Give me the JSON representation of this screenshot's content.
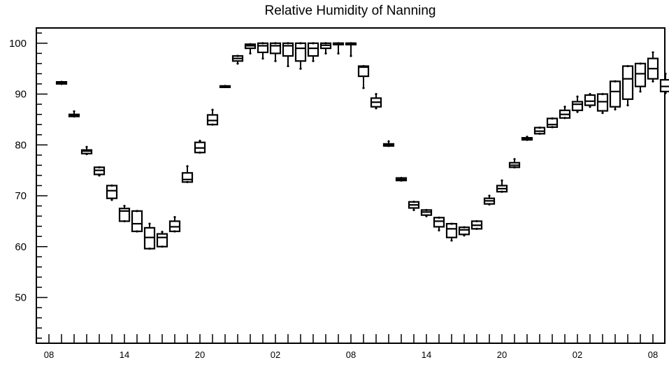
{
  "chart_data": {
    "type": "box",
    "title": "Relative Humidity of Nanning",
    "xlabel": "",
    "ylabel": "",
    "ylim": [
      41,
      103
    ],
    "yticks": [
      50,
      60,
      70,
      80,
      90,
      100
    ],
    "x_tick_labels": [
      "08",
      "14",
      "20",
      "02",
      "08",
      "14",
      "20",
      "02",
      "08"
    ],
    "grid": false,
    "legend": null,
    "series": [
      {
        "hour": 1,
        "min": 92.0,
        "q1": 92.0,
        "median": 92.2,
        "q3": 92.4,
        "max": 92.4
      },
      {
        "hour": 2,
        "min": 85.6,
        "q1": 85.6,
        "median": 85.9,
        "q3": 86.0,
        "max": 86.6
      },
      {
        "hour": 3,
        "min": 78.2,
        "q1": 78.3,
        "median": 78.8,
        "q3": 79.0,
        "max": 79.6
      },
      {
        "hour": 4,
        "min": 74.0,
        "q1": 74.2,
        "median": 75.0,
        "q3": 75.6,
        "max": 75.6
      },
      {
        "hour": 5,
        "min": 69.2,
        "q1": 69.5,
        "median": 71.0,
        "q3": 72.0,
        "max": 72.0
      },
      {
        "hour": 6,
        "min": 65.0,
        "q1": 65.0,
        "median": 67.0,
        "q3": 67.5,
        "max": 68.0
      },
      {
        "hour": 7,
        "min": 63.0,
        "q1": 63.0,
        "median": 64.5,
        "q3": 67.0,
        "max": 67.0
      },
      {
        "hour": 8,
        "min": 59.6,
        "q1": 59.6,
        "median": 61.8,
        "q3": 63.7,
        "max": 64.5
      },
      {
        "hour": 9,
        "min": 60.0,
        "q1": 60.0,
        "median": 61.8,
        "q3": 62.5,
        "max": 62.9
      },
      {
        "hour": 10,
        "min": 63.0,
        "q1": 63.0,
        "median": 63.9,
        "q3": 65.0,
        "max": 65.8
      },
      {
        "hour": 11,
        "min": 72.7,
        "q1": 72.7,
        "median": 73.2,
        "q3": 74.5,
        "max": 75.8
      },
      {
        "hour": 12,
        "min": 78.5,
        "q1": 78.5,
        "median": 79.4,
        "q3": 80.5,
        "max": 80.8
      },
      {
        "hour": 13,
        "min": 84.0,
        "q1": 84.0,
        "median": 84.8,
        "q3": 85.9,
        "max": 86.9
      },
      {
        "hour": 14,
        "min": 91.4,
        "q1": 91.4,
        "median": 91.5,
        "q3": 91.6,
        "max": 91.6
      },
      {
        "hour": 15,
        "min": 96.0,
        "q1": 96.5,
        "median": 97.0,
        "q3": 97.5,
        "max": 97.5
      },
      {
        "hour": 16,
        "min": 98.0,
        "q1": 99.0,
        "median": 99.5,
        "q3": 99.8,
        "max": 99.8
      },
      {
        "hour": 17,
        "min": 97.0,
        "q1": 98.2,
        "median": 99.5,
        "q3": 100.0,
        "max": 100.0
      },
      {
        "hour": 18,
        "min": 96.5,
        "q1": 98.0,
        "median": 99.5,
        "q3": 100.0,
        "max": 100.0
      },
      {
        "hour": 19,
        "min": 95.5,
        "q1": 97.5,
        "median": 99.5,
        "q3": 100.0,
        "max": 100.0
      },
      {
        "hour": 20,
        "min": 95.0,
        "q1": 96.5,
        "median": 99.0,
        "q3": 100.0,
        "max": 100.0
      },
      {
        "hour": 21,
        "min": 96.5,
        "q1": 97.5,
        "median": 99.0,
        "q3": 100.0,
        "max": 100.0
      },
      {
        "hour": 22,
        "min": 98.0,
        "q1": 99.0,
        "median": 99.6,
        "q3": 100.0,
        "max": 100.0
      },
      {
        "hour": 23,
        "min": 98.0,
        "q1": 100.0,
        "median": 100.0,
        "q3": 100.0,
        "max": 100.0
      },
      {
        "hour": 24,
        "min": 97.5,
        "q1": 100.0,
        "median": 100.0,
        "q3": 100.0,
        "max": 100.0
      },
      {
        "hour": 25,
        "min": 91.2,
        "q1": 93.5,
        "median": 95.3,
        "q3": 95.5,
        "max": 95.5
      },
      {
        "hour": 26,
        "min": 87.2,
        "q1": 87.5,
        "median": 88.4,
        "q3": 89.2,
        "max": 90.0
      },
      {
        "hour": 27,
        "min": 79.8,
        "q1": 79.8,
        "median": 80.0,
        "q3": 80.2,
        "max": 80.7
      },
      {
        "hour": 28,
        "min": 73.0,
        "q1": 73.0,
        "median": 73.2,
        "q3": 73.5,
        "max": 73.5
      },
      {
        "hour": 29,
        "min": 67.2,
        "q1": 67.6,
        "median": 68.2,
        "q3": 68.8,
        "max": 68.8
      },
      {
        "hour": 30,
        "min": 66.0,
        "q1": 66.2,
        "median": 66.8,
        "q3": 67.2,
        "max": 67.2
      },
      {
        "hour": 31,
        "min": 63.2,
        "q1": 63.9,
        "median": 65.0,
        "q3": 65.7,
        "max": 65.7
      },
      {
        "hour": 32,
        "min": 61.2,
        "q1": 61.8,
        "median": 63.5,
        "q3": 64.5,
        "max": 64.5
      },
      {
        "hour": 33,
        "min": 62.2,
        "q1": 62.4,
        "median": 63.3,
        "q3": 63.8,
        "max": 63.8
      },
      {
        "hour": 34,
        "min": 63.5,
        "q1": 63.5,
        "median": 64.2,
        "q3": 65.0,
        "max": 65.0
      },
      {
        "hour": 35,
        "min": 68.3,
        "q1": 68.4,
        "median": 69.0,
        "q3": 69.5,
        "max": 70.0
      },
      {
        "hour": 36,
        "min": 70.8,
        "q1": 70.8,
        "median": 71.4,
        "q3": 72.0,
        "max": 73.0
      },
      {
        "hour": 37,
        "min": 75.6,
        "q1": 75.6,
        "median": 76.0,
        "q3": 76.5,
        "max": 77.2
      },
      {
        "hour": 38,
        "min": 81.0,
        "q1": 81.0,
        "median": 81.2,
        "q3": 81.4,
        "max": 81.6
      },
      {
        "hour": 39,
        "min": 82.2,
        "q1": 82.2,
        "median": 82.7,
        "q3": 83.4,
        "max": 83.4
      },
      {
        "hour": 40,
        "min": 83.5,
        "q1": 83.5,
        "median": 84.0,
        "q3": 85.2,
        "max": 85.2
      },
      {
        "hour": 41,
        "min": 85.3,
        "q1": 85.3,
        "median": 86.0,
        "q3": 86.8,
        "max": 87.5
      },
      {
        "hour": 42,
        "min": 86.5,
        "q1": 86.8,
        "median": 88.0,
        "q3": 88.5,
        "max": 89.5
      },
      {
        "hour": 43,
        "min": 87.5,
        "q1": 87.8,
        "median": 88.6,
        "q3": 89.8,
        "max": 90.0
      },
      {
        "hour": 44,
        "min": 86.3,
        "q1": 86.7,
        "median": 88.5,
        "q3": 90.0,
        "max": 90.0
      },
      {
        "hour": 45,
        "min": 87.0,
        "q1": 87.5,
        "median": 90.5,
        "q3": 92.5,
        "max": 92.5
      },
      {
        "hour": 46,
        "min": 87.8,
        "q1": 89.0,
        "median": 93.0,
        "q3": 95.5,
        "max": 95.5
      },
      {
        "hour": 47,
        "min": 90.5,
        "q1": 91.5,
        "median": 94.0,
        "q3": 96.0,
        "max": 96.0
      },
      {
        "hour": 48,
        "min": 92.5,
        "q1": 93.0,
        "median": 95.0,
        "q3": 97.0,
        "max": 98.2
      },
      {
        "hour": 49,
        "min": 90.2,
        "q1": 90.5,
        "median": 91.5,
        "q3": 92.8,
        "max": 94.0
      }
    ]
  }
}
